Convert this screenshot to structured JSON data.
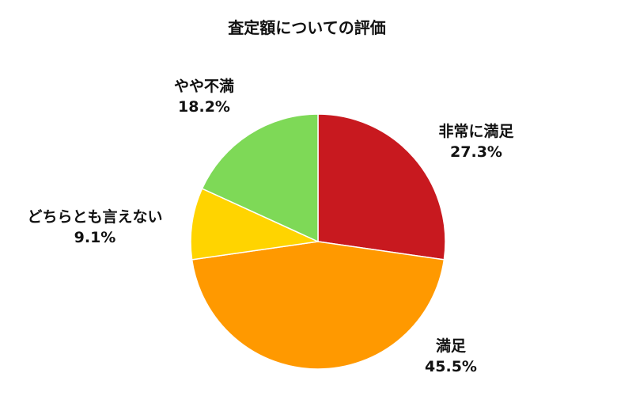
{
  "chart_data": {
    "type": "pie",
    "title": "査定額についての評価",
    "start_angle_deg": 0,
    "direction": "clockwise",
    "slices": [
      {
        "label": "非常に満足",
        "percent_label": "27.3%",
        "value": 27.3,
        "color": "#c8191f"
      },
      {
        "label": "満足",
        "percent_label": "45.5%",
        "value": 45.5,
        "color": "#ff9900"
      },
      {
        "label": "どちらとも言えない",
        "percent_label": "9.1%",
        "value": 9.1,
        "color": "#ffd400"
      },
      {
        "label": "やや不満",
        "percent_label": "18.2%",
        "value": 18.2,
        "color": "#7ed957"
      }
    ]
  }
}
